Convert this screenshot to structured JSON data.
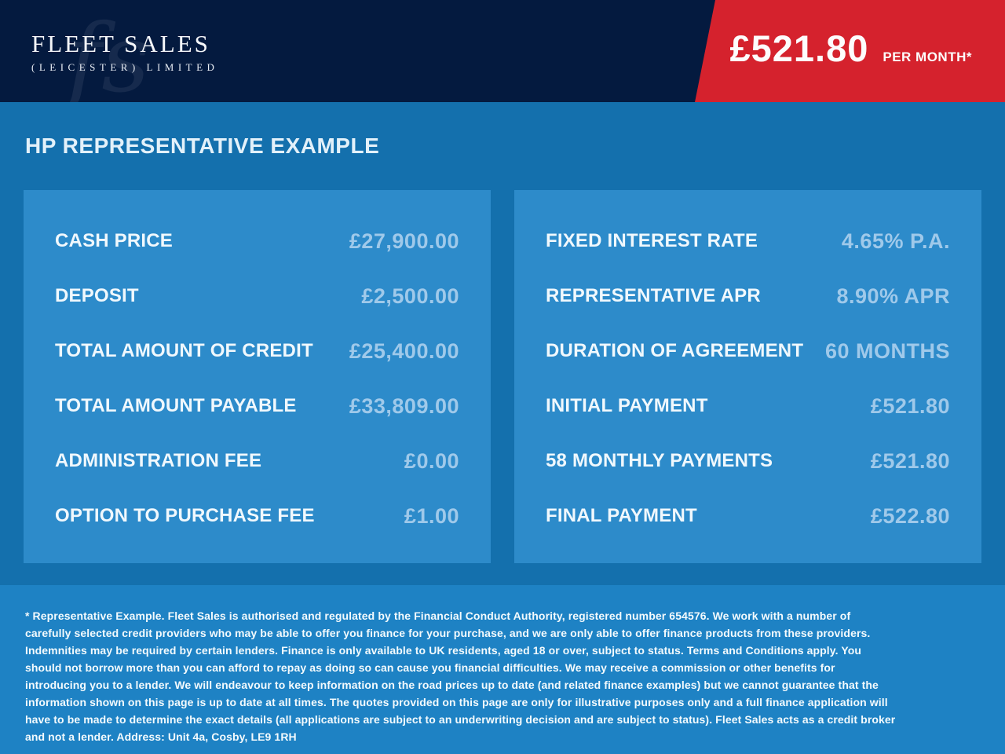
{
  "header": {
    "logo": {
      "monogram": "fs",
      "line1": "FLEET SALES",
      "line2": "(LEICESTER) LIMITED"
    },
    "price_banner": {
      "amount": "£521.80",
      "per": "PER MONTH*"
    }
  },
  "main": {
    "title": "HP REPRESENTATIVE EXAMPLE",
    "left_panel": {
      "rows": [
        {
          "label": "CASH PRICE",
          "value": "£27,900.00"
        },
        {
          "label": "DEPOSIT",
          "value": "£2,500.00"
        },
        {
          "label": "TOTAL AMOUNT OF CREDIT",
          "value": "£25,400.00"
        },
        {
          "label": "TOTAL AMOUNT PAYABLE",
          "value": "£33,809.00"
        },
        {
          "label": "ADMINISTRATION FEE",
          "value": "£0.00"
        },
        {
          "label": "OPTION TO PURCHASE FEE",
          "value": "£1.00"
        }
      ]
    },
    "right_panel": {
      "rows": [
        {
          "label": "FIXED INTEREST RATE",
          "value": "4.65% P.A."
        },
        {
          "label": "REPRESENTATIVE APR",
          "value": "8.90% APR"
        },
        {
          "label": "DURATION OF AGREEMENT",
          "value": "60 MONTHS"
        },
        {
          "label": "INITIAL PAYMENT",
          "value": "£521.80"
        },
        {
          "label": "58 MONTHLY PAYMENTS",
          "value": "£521.80"
        },
        {
          "label": "FINAL PAYMENT",
          "value": "£522.80"
        }
      ]
    }
  },
  "footer": {
    "disclaimer": "* Representative Example. Fleet Sales is authorised and regulated by the Financial Conduct Authority, registered number 654576. We work with a number of carefully selected credit providers who may be able to offer you finance for your purchase, and we are only able to offer finance products from these providers. Indemnities may be required by certain lenders. Finance is only available to UK residents, aged 18 or over, subject to status. Terms and Conditions apply. You should not borrow more than you can afford to repay as doing so can cause you financial difficulties. We may receive a commission or other benefits for introducing you to a lender. We will endeavour to keep information on the road prices up to date (and related finance examples) but we cannot guarantee that the information shown on this page is up to date at all times. The quotes provided on this page are only for illustrative purposes only and a full finance application will have to be made to determine the exact details (all applications are subject to an underwriting decision and are subject to status). Fleet Sales acts as a credit broker and not a lender. Address: Unit 4a, Cosby, LE9 1RH"
  },
  "colors": {
    "header_navy": "#041a3f",
    "banner_red": "#d5222d",
    "main_blue": "#1470ad",
    "panel_blue": "#2d8bca",
    "footer_blue": "#1e82c4",
    "value_text": "#9fc9ea",
    "label_text": "#f0f8fd"
  }
}
